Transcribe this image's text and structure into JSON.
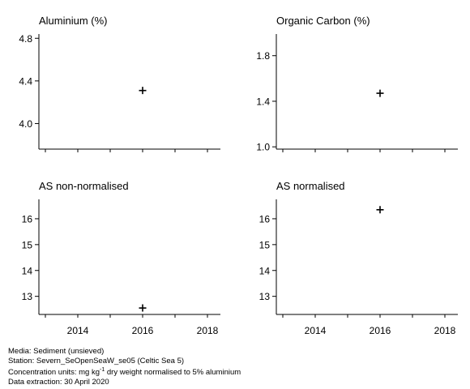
{
  "chart_data": [
    {
      "type": "scatter",
      "title": "Aluminium (%)",
      "xlim": [
        2012.8,
        2018.4
      ],
      "ylim": [
        3.76,
        4.84
      ],
      "yticks": [
        4.0,
        4.4,
        4.8
      ],
      "ytick_labels": [
        "4.0",
        "4.4",
        "4.8"
      ],
      "xticks": [
        2014,
        2016,
        2018
      ],
      "xtick_labels": [
        "2014",
        "2016",
        "2018"
      ],
      "show_x_labels": false,
      "x": [
        2016
      ],
      "y": [
        4.31
      ],
      "marker": "plus"
    },
    {
      "type": "scatter",
      "title": "Organic Carbon (%)",
      "xlim": [
        2012.8,
        2018.4
      ],
      "ylim": [
        0.98,
        1.99
      ],
      "yticks": [
        1.0,
        1.4,
        1.8
      ],
      "ytick_labels": [
        "1.0",
        "1.4",
        "1.8"
      ],
      "xticks": [
        2014,
        2016,
        2018
      ],
      "xtick_labels": [
        "2014",
        "2016",
        "2018"
      ],
      "show_x_labels": false,
      "x": [
        2016
      ],
      "y": [
        1.47
      ],
      "marker": "plus"
    },
    {
      "type": "scatter",
      "title": "AS non-normalised",
      "xlim": [
        2012.8,
        2018.4
      ],
      "ylim": [
        12.3,
        16.75
      ],
      "yticks": [
        13,
        14,
        15,
        16
      ],
      "ytick_labels": [
        "13",
        "14",
        "15",
        "16"
      ],
      "xticks": [
        2014,
        2016,
        2018
      ],
      "xtick_labels": [
        "2014",
        "2016",
        "2018"
      ],
      "show_x_labels": true,
      "x": [
        2016
      ],
      "y": [
        12.55
      ],
      "marker": "plus"
    },
    {
      "type": "scatter",
      "title": "AS normalised",
      "xlim": [
        2012.8,
        2018.4
      ],
      "ylim": [
        12.3,
        16.75
      ],
      "yticks": [
        13,
        14,
        15,
        16
      ],
      "ytick_labels": [
        "13",
        "14",
        "15",
        "16"
      ],
      "xticks": [
        2014,
        2016,
        2018
      ],
      "xtick_labels": [
        "2014",
        "2016",
        "2018"
      ],
      "show_x_labels": true,
      "x": [
        2016
      ],
      "y": [
        16.35
      ],
      "marker": "plus"
    }
  ],
  "footer": {
    "media": "Media: Sediment (unsieved)",
    "station": "Station: Severn_SeOpenSeaW_se05 (Celtic Sea 5)",
    "units_prefix": "Concentration units:  mg kg",
    "units_exp": "-1",
    "units_suffix": " dry weight normalised to 5% aluminium",
    "extraction": "Data extraction: 30 April 2020"
  }
}
